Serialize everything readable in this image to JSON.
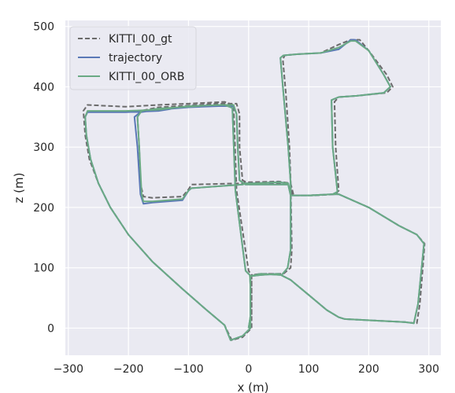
{
  "chart_data": {
    "type": "line",
    "xlabel": "x (m)",
    "ylabel": "z (m)",
    "xlim": [
      -305,
      320
    ],
    "ylim": [
      -45,
      510
    ],
    "xticks": [
      -300,
      -200,
      -100,
      0,
      100,
      200,
      300
    ],
    "yticks": [
      0,
      100,
      200,
      300,
      400,
      500
    ],
    "xtick_labels": [
      "−300",
      "−200",
      "−100",
      "0",
      "100",
      "200",
      "300"
    ],
    "ytick_labels": [
      "0",
      "100",
      "200",
      "300",
      "400",
      "500"
    ],
    "grid": true,
    "legend_position": "top-left",
    "series": [
      {
        "name": "KITTI_00_gt",
        "color": "#6b6b6b",
        "style": "dashed",
        "points": [
          [
            0,
            0
          ],
          [
            5,
            20
          ],
          [
            5,
            70
          ],
          [
            5,
            88
          ],
          [
            0,
            95
          ],
          [
            -20,
            228
          ],
          [
            -25,
            370
          ],
          [
            -40,
            375
          ],
          [
            -100,
            372
          ],
          [
            -150,
            370
          ],
          [
            -205,
            367
          ],
          [
            -268,
            370
          ],
          [
            -275,
            360
          ],
          [
            -272,
            320
          ],
          [
            -265,
            280
          ],
          [
            -250,
            240
          ],
          [
            -230,
            200
          ],
          [
            -200,
            155
          ],
          [
            -160,
            110
          ],
          [
            -110,
            65
          ],
          [
            -70,
            30
          ],
          [
            -40,
            5
          ],
          [
            -28,
            -20
          ],
          [
            -10,
            -15
          ],
          [
            5,
            0
          ],
          [
            5,
            20
          ],
          [
            5,
            88
          ],
          [
            20,
            90
          ],
          [
            58,
            90
          ],
          [
            70,
            100
          ],
          [
            72,
            130
          ],
          [
            70,
            245
          ],
          [
            68,
            300
          ],
          [
            62,
            390
          ],
          [
            57,
            445
          ],
          [
            60,
            452
          ],
          [
            80,
            454
          ],
          [
            120,
            456
          ],
          [
            150,
            470
          ],
          [
            170,
            478
          ],
          [
            185,
            478
          ],
          [
            200,
            460
          ],
          [
            230,
            420
          ],
          [
            240,
            400
          ],
          [
            230,
            390
          ],
          [
            180,
            385
          ],
          [
            150,
            383
          ],
          [
            143,
            375
          ],
          [
            145,
            300
          ],
          [
            150,
            228
          ],
          [
            145,
            222
          ],
          [
            110,
            220
          ],
          [
            72,
            220
          ],
          [
            70,
            240
          ],
          [
            50,
            243
          ],
          [
            10,
            242
          ],
          [
            -5,
            242
          ],
          [
            -10,
            240
          ],
          [
            -95,
            238
          ],
          [
            -100,
            230
          ],
          [
            -110,
            218
          ],
          [
            -160,
            216
          ],
          [
            -175,
            218
          ],
          [
            -180,
            240
          ],
          [
            -182,
            300
          ],
          [
            -185,
            350
          ],
          [
            -180,
            360
          ],
          [
            -150,
            366
          ],
          [
            -100,
            369
          ],
          [
            -50,
            372
          ],
          [
            -20,
            372
          ],
          [
            -15,
            355
          ],
          [
            -15,
            300
          ],
          [
            -10,
            245
          ],
          [
            0,
            240
          ],
          [
            5,
            240
          ],
          [
            10,
            240
          ],
          [
            70,
            240
          ],
          [
            75,
            220
          ],
          [
            100,
            220
          ],
          [
            140,
            222
          ],
          [
            150,
            222
          ],
          [
            200,
            200
          ],
          [
            250,
            170
          ],
          [
            280,
            155
          ],
          [
            293,
            140
          ],
          [
            290,
            100
          ],
          [
            285,
            40
          ],
          [
            280,
            8
          ],
          [
            260,
            10
          ],
          [
            220,
            12
          ],
          [
            160,
            15
          ],
          [
            150,
            18
          ],
          [
            130,
            30
          ],
          [
            100,
            55
          ],
          [
            70,
            80
          ],
          [
            50,
            90
          ],
          [
            20,
            90
          ],
          [
            5,
            88
          ],
          [
            5,
            70
          ],
          [
            5,
            20
          ],
          [
            0,
            0
          ]
        ]
      },
      {
        "name": "trajectory",
        "color": "#5a78b6",
        "style": "solid",
        "points": [
          [
            0,
            0
          ],
          [
            3,
            20
          ],
          [
            3,
            70
          ],
          [
            2,
            88
          ],
          [
            -5,
            95
          ],
          [
            -22,
            228
          ],
          [
            -27,
            365
          ],
          [
            -40,
            370
          ],
          [
            -100,
            368
          ],
          [
            -150,
            360
          ],
          [
            -205,
            358
          ],
          [
            -268,
            358
          ],
          [
            -272,
            350
          ],
          [
            -270,
            320
          ],
          [
            -263,
            280
          ],
          [
            -250,
            240
          ],
          [
            -230,
            200
          ],
          [
            -200,
            155
          ],
          [
            -160,
            110
          ],
          [
            -110,
            65
          ],
          [
            -70,
            30
          ],
          [
            -40,
            5
          ],
          [
            -30,
            -20
          ],
          [
            -10,
            -13
          ],
          [
            3,
            0
          ],
          [
            3,
            20
          ],
          [
            3,
            86
          ],
          [
            20,
            90
          ],
          [
            55,
            88
          ],
          [
            65,
            100
          ],
          [
            70,
            130
          ],
          [
            70,
            240
          ],
          [
            66,
            300
          ],
          [
            58,
            390
          ],
          [
            53,
            448
          ],
          [
            58,
            452
          ],
          [
            80,
            454
          ],
          [
            120,
            456
          ],
          [
            150,
            462
          ],
          [
            170,
            478
          ],
          [
            178,
            478
          ],
          [
            200,
            460
          ],
          [
            225,
            420
          ],
          [
            236,
            400
          ],
          [
            225,
            390
          ],
          [
            180,
            385
          ],
          [
            150,
            383
          ],
          [
            138,
            378
          ],
          [
            140,
            300
          ],
          [
            148,
            226
          ],
          [
            140,
            222
          ],
          [
            105,
            220
          ],
          [
            70,
            220
          ],
          [
            66,
            240
          ],
          [
            50,
            242
          ],
          [
            10,
            240
          ],
          [
            -5,
            240
          ],
          [
            -10,
            238
          ],
          [
            -95,
            232
          ],
          [
            -100,
            228
          ],
          [
            -110,
            212
          ],
          [
            -160,
            208
          ],
          [
            -175,
            206
          ],
          [
            -180,
            222
          ],
          [
            -185,
            300
          ],
          [
            -190,
            350
          ],
          [
            -180,
            358
          ],
          [
            -150,
            362
          ],
          [
            -100,
            366
          ],
          [
            -50,
            368
          ],
          [
            -25,
            368
          ],
          [
            -20,
            355
          ],
          [
            -18,
            300
          ],
          [
            -15,
            245
          ],
          [
            -5,
            238
          ],
          [
            5,
            238
          ],
          [
            10,
            238
          ],
          [
            66,
            238
          ],
          [
            70,
            220
          ],
          [
            100,
            220
          ],
          [
            140,
            222
          ],
          [
            150,
            222
          ],
          [
            200,
            200
          ],
          [
            250,
            170
          ],
          [
            280,
            155
          ],
          [
            292,
            140
          ],
          [
            288,
            100
          ],
          [
            282,
            40
          ],
          [
            275,
            8
          ],
          [
            260,
            10
          ],
          [
            220,
            12
          ],
          [
            160,
            15
          ],
          [
            150,
            18
          ],
          [
            130,
            30
          ],
          [
            100,
            55
          ],
          [
            70,
            80
          ],
          [
            50,
            90
          ],
          [
            20,
            88
          ],
          [
            3,
            86
          ],
          [
            3,
            70
          ],
          [
            3,
            20
          ],
          [
            0,
            0
          ]
        ]
      },
      {
        "name": "KITTI_00_ORB",
        "color": "#6aaa84",
        "style": "solid",
        "points": [
          [
            0,
            0
          ],
          [
            3,
            20
          ],
          [
            3,
            70
          ],
          [
            2,
            88
          ],
          [
            -5,
            95
          ],
          [
            -22,
            228
          ],
          [
            -27,
            365
          ],
          [
            -40,
            370
          ],
          [
            -100,
            368
          ],
          [
            -150,
            362
          ],
          [
            -205,
            360
          ],
          [
            -268,
            360
          ],
          [
            -272,
            350
          ],
          [
            -270,
            320
          ],
          [
            -263,
            280
          ],
          [
            -250,
            240
          ],
          [
            -230,
            200
          ],
          [
            -200,
            155
          ],
          [
            -160,
            110
          ],
          [
            -110,
            65
          ],
          [
            -70,
            30
          ],
          [
            -40,
            5
          ],
          [
            -30,
            -20
          ],
          [
            -10,
            -13
          ],
          [
            3,
            0
          ],
          [
            3,
            20
          ],
          [
            3,
            86
          ],
          [
            20,
            90
          ],
          [
            55,
            88
          ],
          [
            65,
            100
          ],
          [
            70,
            130
          ],
          [
            70,
            240
          ],
          [
            66,
            300
          ],
          [
            58,
            390
          ],
          [
            53,
            448
          ],
          [
            58,
            452
          ],
          [
            80,
            454
          ],
          [
            120,
            456
          ],
          [
            150,
            465
          ],
          [
            170,
            476
          ],
          [
            178,
            476
          ],
          [
            200,
            460
          ],
          [
            225,
            420
          ],
          [
            236,
            400
          ],
          [
            225,
            390
          ],
          [
            180,
            385
          ],
          [
            150,
            383
          ],
          [
            138,
            378
          ],
          [
            140,
            300
          ],
          [
            148,
            226
          ],
          [
            140,
            222
          ],
          [
            105,
            220
          ],
          [
            70,
            220
          ],
          [
            66,
            240
          ],
          [
            50,
            242
          ],
          [
            10,
            240
          ],
          [
            -5,
            240
          ],
          [
            -10,
            238
          ],
          [
            -95,
            232
          ],
          [
            -100,
            228
          ],
          [
            -110,
            214
          ],
          [
            -160,
            210
          ],
          [
            -175,
            210
          ],
          [
            -178,
            222
          ],
          [
            -182,
            300
          ],
          [
            -185,
            350
          ],
          [
            -178,
            360
          ],
          [
            -150,
            364
          ],
          [
            -100,
            367
          ],
          [
            -50,
            370
          ],
          [
            -25,
            370
          ],
          [
            -20,
            355
          ],
          [
            -18,
            300
          ],
          [
            -15,
            245
          ],
          [
            -5,
            238
          ],
          [
            5,
            238
          ],
          [
            10,
            238
          ],
          [
            66,
            238
          ],
          [
            70,
            220
          ],
          [
            100,
            220
          ],
          [
            140,
            222
          ],
          [
            150,
            222
          ],
          [
            200,
            200
          ],
          [
            250,
            170
          ],
          [
            280,
            155
          ],
          [
            292,
            140
          ],
          [
            288,
            100
          ],
          [
            282,
            40
          ],
          [
            275,
            8
          ],
          [
            260,
            10
          ],
          [
            220,
            12
          ],
          [
            160,
            15
          ],
          [
            150,
            18
          ],
          [
            130,
            30
          ],
          [
            100,
            55
          ],
          [
            70,
            80
          ],
          [
            50,
            90
          ],
          [
            20,
            88
          ],
          [
            3,
            86
          ],
          [
            3,
            70
          ],
          [
            3,
            20
          ],
          [
            0,
            0
          ]
        ]
      }
    ]
  }
}
